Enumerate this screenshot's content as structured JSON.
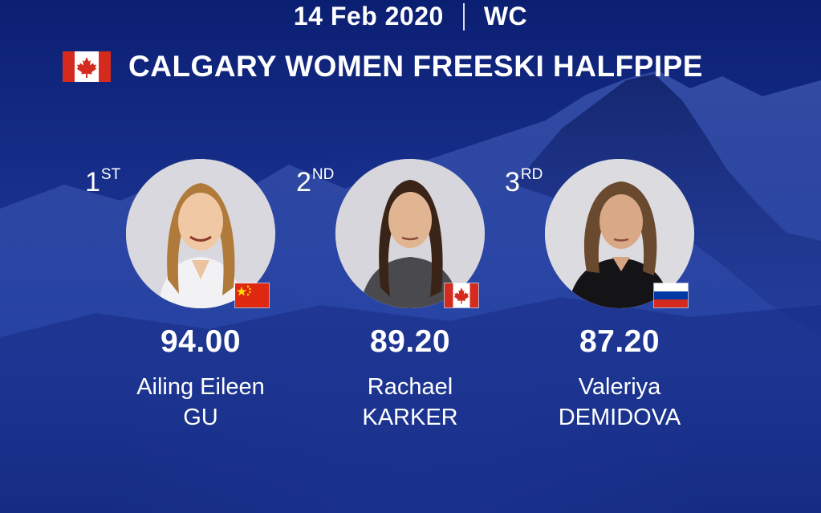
{
  "header": {
    "date": "14 Feb 2020",
    "level": "WC"
  },
  "event": {
    "title": "CALGARY WOMEN FREESKI HALFPIPE",
    "country_flag_icon": "canada-flag-icon"
  },
  "podium": [
    {
      "rank_number": "1",
      "rank_suffix": "ST",
      "score": "94.00",
      "first_name": "Ailing Eileen",
      "last_name": "GU",
      "nation_flag_icon": "china-flag-icon",
      "nation_flag_colors": [
        "#de2910",
        "#ffde00"
      ]
    },
    {
      "rank_number": "2",
      "rank_suffix": "ND",
      "score": "89.20",
      "first_name": "Rachael",
      "last_name": "KARKER",
      "nation_flag_icon": "canada-flag-icon",
      "nation_flag_colors": [
        "#d52b1e",
        "#ffffff"
      ]
    },
    {
      "rank_number": "3",
      "rank_suffix": "RD",
      "score": "87.20",
      "first_name": "Valeriya",
      "last_name": "DEMIDOVA",
      "nation_flag_icon": "russia-flag-icon",
      "nation_flag_colors": [
        "#ffffff",
        "#0039a6",
        "#d52b1e"
      ]
    }
  ],
  "colors": {
    "background": "#1a3391",
    "text": "#ffffff"
  }
}
